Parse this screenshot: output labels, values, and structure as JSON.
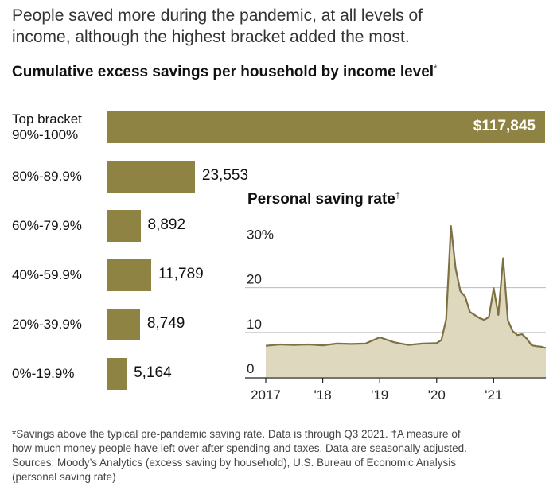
{
  "headline": [
    "People saved more during the pandemic, at all levels of",
    "income, although the highest bracket added the most."
  ],
  "bar_chart_title": "Cumulative excess savings per household by income level",
  "bar_chart_title_mark": "*",
  "line_chart_title": "Personal saving rate",
  "line_chart_title_mark": "†",
  "colors": {
    "bar": "#8f8343",
    "line": "#7d7142",
    "area": "#ddd8be",
    "grid": "#bcbcbc"
  },
  "chart_data": [
    {
      "type": "bar",
      "orientation": "horizontal",
      "title": "Cumulative excess savings per household by income level",
      "categories": [
        [
          "Top bracket",
          "90%-100%"
        ],
        [
          "80%-89.9%"
        ],
        [
          "60%-79.9%"
        ],
        [
          "40%-59.9%"
        ],
        [
          "20%-39.9%"
        ],
        [
          "0%-19.9%"
        ]
      ],
      "values": [
        117845,
        23553,
        8892,
        11789,
        8749,
        5164
      ],
      "value_labels": [
        "$117,845",
        "23,553",
        "8,892",
        "11,789",
        "8,749",
        "5,164"
      ],
      "xlim": [
        0,
        117845
      ]
    },
    {
      "type": "area",
      "title": "Personal saving rate",
      "x": [
        "2017-01",
        "2017-04",
        "2017-07",
        "2017-10",
        "2018-01",
        "2018-04",
        "2018-07",
        "2018-10",
        "2019-01",
        "2019-04",
        "2019-07",
        "2019-10",
        "2020-01",
        "2020-02",
        "2020-03",
        "2020-04",
        "2020-05",
        "2020-06",
        "2020-07",
        "2020-08",
        "2020-09",
        "2020-10",
        "2020-11",
        "2020-12",
        "2021-01",
        "2021-02",
        "2021-03",
        "2021-04",
        "2021-05",
        "2021-06",
        "2021-07",
        "2021-08",
        "2021-09",
        "2021-10",
        "2021-11",
        "2021-12"
      ],
      "values": [
        7.0,
        7.3,
        7.2,
        7.3,
        7.1,
        7.5,
        7.4,
        7.5,
        8.9,
        7.8,
        7.2,
        7.5,
        7.6,
        8.3,
        12.9,
        33.8,
        24.3,
        19.2,
        18.0,
        14.6,
        13.9,
        13.2,
        12.8,
        13.4,
        19.9,
        13.9,
        26.6,
        12.7,
        10.3,
        9.4,
        9.6,
        8.6,
        7.1,
        6.9,
        6.8,
        6.5
      ],
      "x_ticks": [
        "2017",
        "'18",
        "'19",
        "'20",
        "'21"
      ],
      "y_ticks": [
        "30%",
        "20",
        "10",
        "0"
      ],
      "y_tick_values": [
        30,
        20,
        10,
        0
      ],
      "ylim": [
        0,
        34
      ],
      "grid": "horizontal"
    }
  ],
  "footnote": [
    "*Savings above the typical pre-pandemic saving rate. Data is through Q3 2021.   †A measure of",
    "how much money people have left over after spending and taxes. Data are seasonally adjusted.",
    "Sources: Moody’s Analytics (excess saving by household), U.S. Bureau of Economic Analysis",
    "(personal saving rate)"
  ]
}
